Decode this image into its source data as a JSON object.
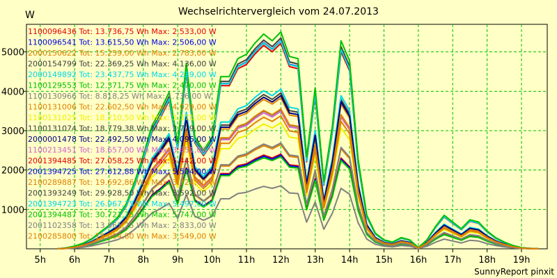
{
  "chart_data": {
    "type": "line",
    "title": "Wechselrichtervergleich vom 24.07.2013",
    "ylabel": "W",
    "xlabel": "",
    "footer": "SunnyReport pinxit",
    "ylim": [
      0,
      5700
    ],
    "xlim": [
      4.6,
      19.75
    ],
    "yticks": [
      1000,
      2000,
      3000,
      4000,
      5000
    ],
    "xticks": [
      {
        "v": 5,
        "label": "5h"
      },
      {
        "v": 6,
        "label": "6h"
      },
      {
        "v": 7,
        "label": "7h"
      },
      {
        "v": 8,
        "label": "8h"
      },
      {
        "v": 9,
        "label": "9h"
      },
      {
        "v": 10,
        "label": "10h"
      },
      {
        "v": 11,
        "label": "11h"
      },
      {
        "v": 12,
        "label": "12h"
      },
      {
        "v": 13,
        "label": "13h"
      },
      {
        "v": 14,
        "label": "14h"
      },
      {
        "v": 15,
        "label": "15h"
      },
      {
        "v": 16,
        "label": "16h"
      },
      {
        "v": 17,
        "label": "17h"
      },
      {
        "v": 18,
        "label": "18h"
      },
      {
        "v": 19,
        "label": "19h"
      }
    ],
    "grid": true,
    "legend_position": "top-left",
    "x": [
      5.5,
      5.75,
      6,
      6.25,
      6.5,
      6.75,
      7,
      7.25,
      7.5,
      7.75,
      8,
      8.25,
      8.5,
      8.75,
      9,
      9.25,
      9.5,
      9.75,
      10,
      10.25,
      10.5,
      10.75,
      11,
      11.25,
      11.5,
      11.75,
      12,
      12.25,
      12.5,
      12.75,
      13,
      13.25,
      13.5,
      13.75,
      14,
      14.25,
      14.5,
      14.75,
      15,
      15.25,
      15.5,
      15.75,
      16,
      16.25,
      16.5,
      16.75,
      17,
      17.25,
      17.5,
      17.75,
      18,
      18.25,
      18.5,
      18.75,
      19,
      19.25,
      19.5
    ],
    "shape": [
      0,
      0.004,
      0.012,
      0.025,
      0.045,
      0.075,
      0.105,
      0.14,
      0.2,
      0.3,
      0.42,
      0.55,
      0.62,
      0.7,
      0.47,
      0.83,
      0.5,
      0.44,
      0.5,
      0.77,
      0.77,
      0.85,
      0.87,
      0.92,
      0.96,
      0.93,
      0.97,
      0.86,
      0.85,
      0.41,
      0.72,
      0.3,
      0.55,
      0.93,
      0.84,
      0.4,
      0.15,
      0.07,
      0.04,
      0.03,
      0.05,
      0.04,
      0.005,
      0.04,
      0.1,
      0.15,
      0.12,
      0.09,
      0.13,
      0.12,
      0.08,
      0.05,
      0.03,
      0.015,
      0.005,
      0.002,
      0
    ],
    "series": [
      {
        "label": "1100096436 Tot: 13.736,75 Wh Max: 2.533,00 W",
        "color": "#e80000",
        "peak": 2480
      },
      {
        "label": "1100096541 Tot: 13.615,50 Wh Max: 2.506,00 W",
        "color": "#0000e0",
        "peak": 2450
      },
      {
        "label": "2000150622 Tot: 15.259,00 Wh Max: 2.783,00 W",
        "color": "#e08000",
        "peak": 2730
      },
      {
        "label": "2000154799 Tot: 22.369,25 Wh Max: 4.136,00 W",
        "color": "#404040",
        "peak": 4080
      },
      {
        "label": "2000149892 Tot: 23.437,75 Wh Max: 4.239,00 W",
        "color": "#00d8e8",
        "peak": 4180
      },
      {
        "label": "1100129553 Tot: 12.371,75 Wh Max: 2.470,00 W",
        "color": "#00c000",
        "peak": 2410
      },
      {
        "label": "1100130966 Tot: 8.818,25 Wh Max: 1.736,00 W",
        "color": "#808080",
        "peak": 1650
      },
      {
        "label": "1100131006 Tot: 22.602,50 Wh Max: 4.029,00 W",
        "color": "#e08000",
        "peak": 3950
      },
      {
        "label": "1100131025 Tot: 18.210,50 Wh Max: 3.371,00 W",
        "color": "#f0f000",
        "peak": 3300
      },
      {
        "label": "1100131074 Tot: 18.779,38 Wh Max: 3.719,00 W",
        "color": "#404040",
        "peak": 3650
      },
      {
        "label": "2000001478 Tot: 22.492,50 Wh Max: 4.095,00 W",
        "color": "#000080",
        "peak": 4010
      },
      {
        "label": "1100213451 Tot: 18.657,00 Wh Max: 3.651,00 W",
        "color": "#d060d0",
        "peak": 3600
      },
      {
        "label": "2001394485 Tot: 27.058,25 Wh Max: 5.442,00 W",
        "color": "#e80000",
        "peak": 5380
      },
      {
        "label": "2001394725 Tot: 27.612,88 Wh Max: 5.504,00 W",
        "color": "#0000e0",
        "peak": 5450
      },
      {
        "label": "2100289887 Tot: 19.692,86 Wh Max: 3.724,00 W",
        "color": "#e08000",
        "peak": 3660
      },
      {
        "label": "2001393249 Tot: 29.928,50 Wh Max: 5.592,00 W",
        "color": "#404040",
        "peak": 5520
      },
      {
        "label": "2001394723 Tot: 26.967,75 Wh Max: 5.497,00 W",
        "color": "#00d8e8",
        "peak": 5440
      },
      {
        "label": "2001394487 Tot: 30.721,75 Wh Max: 5.747,00 W",
        "color": "#00c000",
        "peak": 5680
      },
      {
        "label": "2001102358 Tot: 13.861,25 Wh Max: 2.833,00 W",
        "color": "#808080",
        "peak": 2770
      },
      {
        "label": "2100285800 Tot: 18.004,80 Wh Max: 3.549,00 W",
        "color": "#e08000",
        "peak": 3480
      }
    ]
  }
}
